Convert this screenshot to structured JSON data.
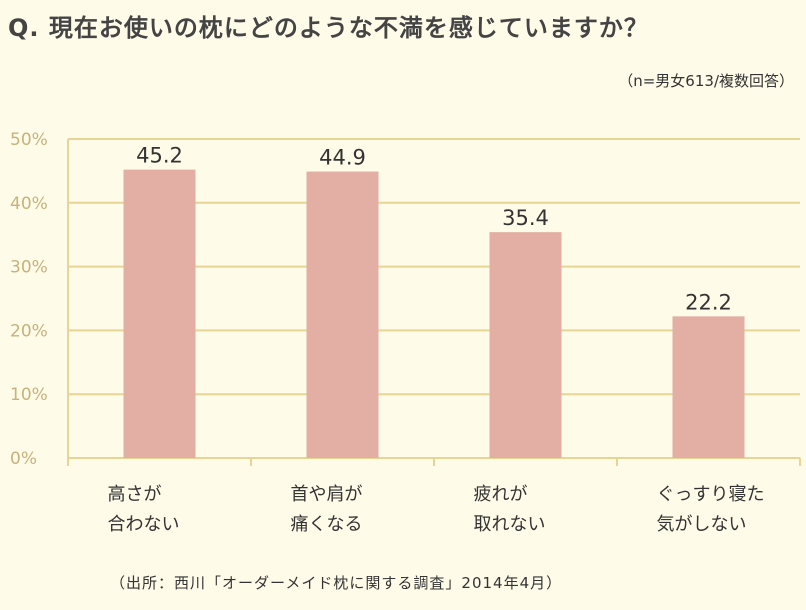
{
  "question": "Q.  現在お使いの枕にどのような不満を感じていますか？",
  "note": "（n=男女613/複数回答）",
  "source": "（出所：西川「オーダーメイド枕に関する調査」2014年4月）",
  "colors": {
    "background": "#fefbe9",
    "bar": "#e3aea4",
    "grid": "#e8d596",
    "tick_text": "#c8b27a"
  },
  "chart_data": {
    "type": "bar",
    "categories": [
      [
        "高さが",
        "合わない"
      ],
      [
        "首や肩が",
        "痛くなる"
      ],
      [
        "疲れが",
        "取れない"
      ],
      [
        "ぐっすり寝た",
        "気がしない"
      ]
    ],
    "values": [
      45.2,
      44.9,
      35.4,
      22.2
    ],
    "value_labels": [
      "45.2",
      "44.9",
      "35.4",
      "22.2"
    ],
    "ylim": [
      0,
      50
    ],
    "y_ticks": [
      0,
      10,
      20,
      30,
      40,
      50
    ],
    "y_tick_labels": [
      "0%",
      "10%",
      "20%",
      "30%",
      "40%",
      "50%"
    ],
    "grid": true,
    "title": "",
    "xlabel": "",
    "ylabel": ""
  }
}
